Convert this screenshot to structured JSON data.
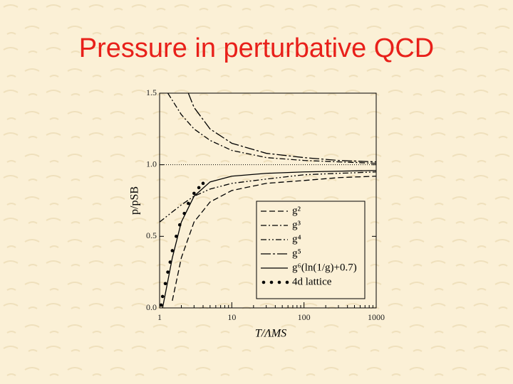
{
  "chart_data": {
    "type": "line",
    "title": "Pressure in perturbative QCD",
    "x_label": "T/ΛMS",
    "y_label": "p/pSB",
    "log_x": true,
    "xlim": [
      1,
      1000
    ],
    "ylim": [
      0,
      1.5
    ],
    "xticks": [
      1,
      10,
      100,
      1000
    ],
    "yticks": [
      {
        "value": 0,
        "label": "0.0"
      },
      {
        "value": 0.5,
        "label": "0.5"
      },
      {
        "value": 1,
        "label": "1.0"
      },
      {
        "value": 1.5,
        "label": "1.5"
      }
    ],
    "reference_line": 1,
    "legend": "lower-right",
    "series": [
      {
        "name": "g²",
        "color": "#000000",
        "style": "dashed",
        "x": [
          1.5,
          2,
          3,
          5,
          10,
          30,
          100,
          300,
          1000
        ],
        "values": [
          0.05,
          0.35,
          0.6,
          0.74,
          0.82,
          0.87,
          0.89,
          0.91,
          0.92
        ]
      },
      {
        "name": "g³",
        "color": "#000000",
        "style": "dashdot",
        "x": [
          1.3,
          2,
          3,
          5,
          10,
          30,
          100,
          300,
          1000
        ],
        "values": [
          1.5,
          1.35,
          1.25,
          1.17,
          1.1,
          1.05,
          1.03,
          1.02,
          1.01
        ]
      },
      {
        "name": "g⁴",
        "color": "#000000",
        "style": "dashdotdot",
        "x": [
          1,
          2,
          3,
          5,
          10,
          30,
          100,
          300,
          1000
        ],
        "values": [
          0.6,
          0.72,
          0.78,
          0.83,
          0.87,
          0.9,
          0.93,
          0.94,
          0.95
        ]
      },
      {
        "name": "g⁵",
        "color": "#000000",
        "style": "longdashdot",
        "x": [
          2.5,
          3,
          5,
          10,
          30,
          100,
          300,
          1000
        ],
        "values": [
          1.5,
          1.4,
          1.25,
          1.15,
          1.08,
          1.05,
          1.03,
          1.02
        ]
      },
      {
        "name": "g⁶(ln(1/g)+0.7)",
        "color": "#000000",
        "style": "solid",
        "x": [
          1.1,
          1.5,
          2,
          3,
          5,
          10,
          30,
          100,
          300,
          1000
        ],
        "values": [
          0,
          0.35,
          0.6,
          0.78,
          0.88,
          0.92,
          0.94,
          0.95,
          0.955,
          0.96
        ]
      },
      {
        "name": "4d lattice",
        "color": "#000000",
        "style": "dots",
        "x": [
          1.05,
          1.1,
          1.2,
          1.3,
          1.4,
          1.5,
          1.7,
          1.9,
          2.2,
          2.5,
          3,
          3.5,
          4
        ],
        "values": [
          0.02,
          0.08,
          0.17,
          0.25,
          0.32,
          0.4,
          0.5,
          0.58,
          0.66,
          0.73,
          0.8,
          0.84,
          0.87
        ]
      }
    ]
  }
}
